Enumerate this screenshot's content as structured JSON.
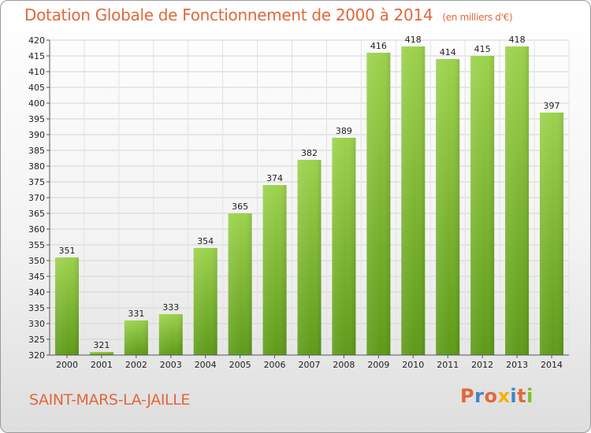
{
  "chart_data": {
    "type": "bar",
    "title": "Dotation Globale de Fonctionnement de 2000 à 2014",
    "unit": "(en milliers d'€)",
    "categories": [
      "2000",
      "2001",
      "2002",
      "2003",
      "2004",
      "2005",
      "2006",
      "2007",
      "2008",
      "2009",
      "2010",
      "2011",
      "2012",
      "2013",
      "2014"
    ],
    "values": [
      351,
      321,
      331,
      333,
      354,
      365,
      374,
      382,
      389,
      416,
      418,
      414,
      415,
      418,
      397
    ],
    "ylim": [
      320,
      420
    ],
    "yticks": [
      320,
      325,
      330,
      335,
      340,
      345,
      350,
      355,
      360,
      365,
      370,
      375,
      380,
      385,
      390,
      395,
      400,
      405,
      410,
      415,
      420
    ],
    "grid": true,
    "bar_color": "#7ab82f"
  },
  "commune": "SAINT-MARS-LA-JAILLE",
  "logo": {
    "p": "P",
    "r": "r",
    "o": "o",
    "x": "x",
    "i1": "i",
    "t": "t",
    "i2": "i"
  }
}
